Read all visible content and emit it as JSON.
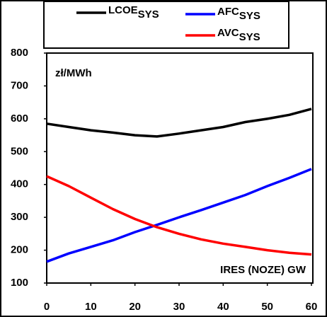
{
  "chart_data": {
    "type": "line",
    "x": [
      0,
      5,
      10,
      15,
      20,
      25,
      30,
      35,
      40,
      45,
      50,
      55,
      60
    ],
    "series": [
      {
        "name": "LCOE",
        "subscript": "SYS",
        "color": "#000000",
        "values": [
          585,
          575,
          565,
          558,
          550,
          546,
          555,
          565,
          575,
          590,
          600,
          612,
          630
        ]
      },
      {
        "name": "AFC",
        "subscript": "SYS",
        "color": "#0000ff",
        "values": [
          165,
          190,
          210,
          230,
          255,
          277,
          300,
          322,
          345,
          368,
          395,
          420,
          447
        ]
      },
      {
        "name": "AVC",
        "subscript": "SYS",
        "color": "#ff0000",
        "values": [
          425,
          395,
          360,
          325,
          295,
          270,
          250,
          233,
          220,
          210,
          200,
          192,
          187
        ]
      }
    ],
    "xlim": [
      0,
      60
    ],
    "xticks": [
      0,
      10,
      20,
      30,
      40,
      50,
      60
    ],
    "ylim": [
      100,
      800
    ],
    "yticks": [
      100,
      200,
      300,
      400,
      500,
      600,
      700,
      800
    ],
    "grid": false,
    "legend": "top",
    "annotations": [
      "zł/MWh",
      "IRES (NOZE) GW"
    ]
  }
}
